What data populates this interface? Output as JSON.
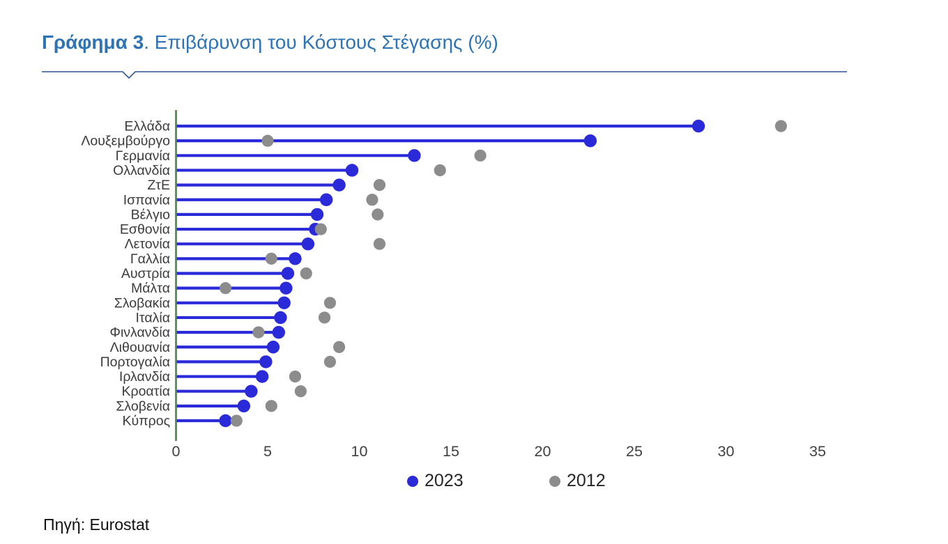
{
  "title": {
    "prefix": "Γράφημα 3",
    "separator": ". ",
    "text": "Επιβάρυνση του Κόστους Στέγασης (%)"
  },
  "source": "Πηγή: Eurostat",
  "colors": {
    "title_blue": "#2E74B5",
    "rule_blue": "#2F5496",
    "series_2023": "#2A2AD8",
    "series_2012": "#8C8C8C",
    "axis_green": "#5E9360",
    "label_text": "#3C3C3C",
    "tick_text": "#3F3F3F"
  },
  "chart_data": {
    "type": "scatter",
    "subtype": "horizontal-lollipop-dot-plot",
    "title": "Γράφημα 3. Επιβάρυνση του Κόστους Στέγασης (%)",
    "xlabel": "",
    "ylabel": "",
    "xlim": [
      0,
      35
    ],
    "xticks": [
      0,
      5,
      10,
      15,
      20,
      25,
      30,
      35
    ],
    "grid": false,
    "legend_position": "bottom",
    "categories": [
      "Ελλάδα",
      "Λουξεμβούργο",
      "Γερμανία",
      "Ολλανδία",
      "ΖτΕ",
      "Ισπανία",
      "Βέλγιο",
      "Εσθονία",
      "Λετονία",
      "Γαλλία",
      "Αυστρία",
      "Μάλτα",
      "Σλοβακία",
      "Ιταλία",
      "Φινλανδία",
      "Λιθουανία",
      "Πορτογαλία",
      "Ιρλανδία",
      "Κροατία",
      "Σλοβενία",
      "Κύπρος"
    ],
    "series": [
      {
        "name": "2023",
        "style": "filled-dot-with-stem-from-zero",
        "color": "#2A2AD8",
        "values": [
          28.5,
          22.6,
          13.0,
          9.6,
          8.9,
          8.2,
          7.7,
          7.6,
          7.2,
          6.5,
          6.1,
          6.0,
          5.9,
          5.7,
          5.6,
          5.3,
          4.9,
          4.7,
          4.1,
          3.7,
          2.7
        ]
      },
      {
        "name": "2012",
        "style": "filled-dot",
        "color": "#8C8C8C",
        "values": [
          33.0,
          5.0,
          16.6,
          14.4,
          11.1,
          10.7,
          11.0,
          7.9,
          11.1,
          5.2,
          7.1,
          2.7,
          8.4,
          8.1,
          4.5,
          8.9,
          8.4,
          6.5,
          6.8,
          5.2,
          3.3
        ]
      }
    ]
  }
}
